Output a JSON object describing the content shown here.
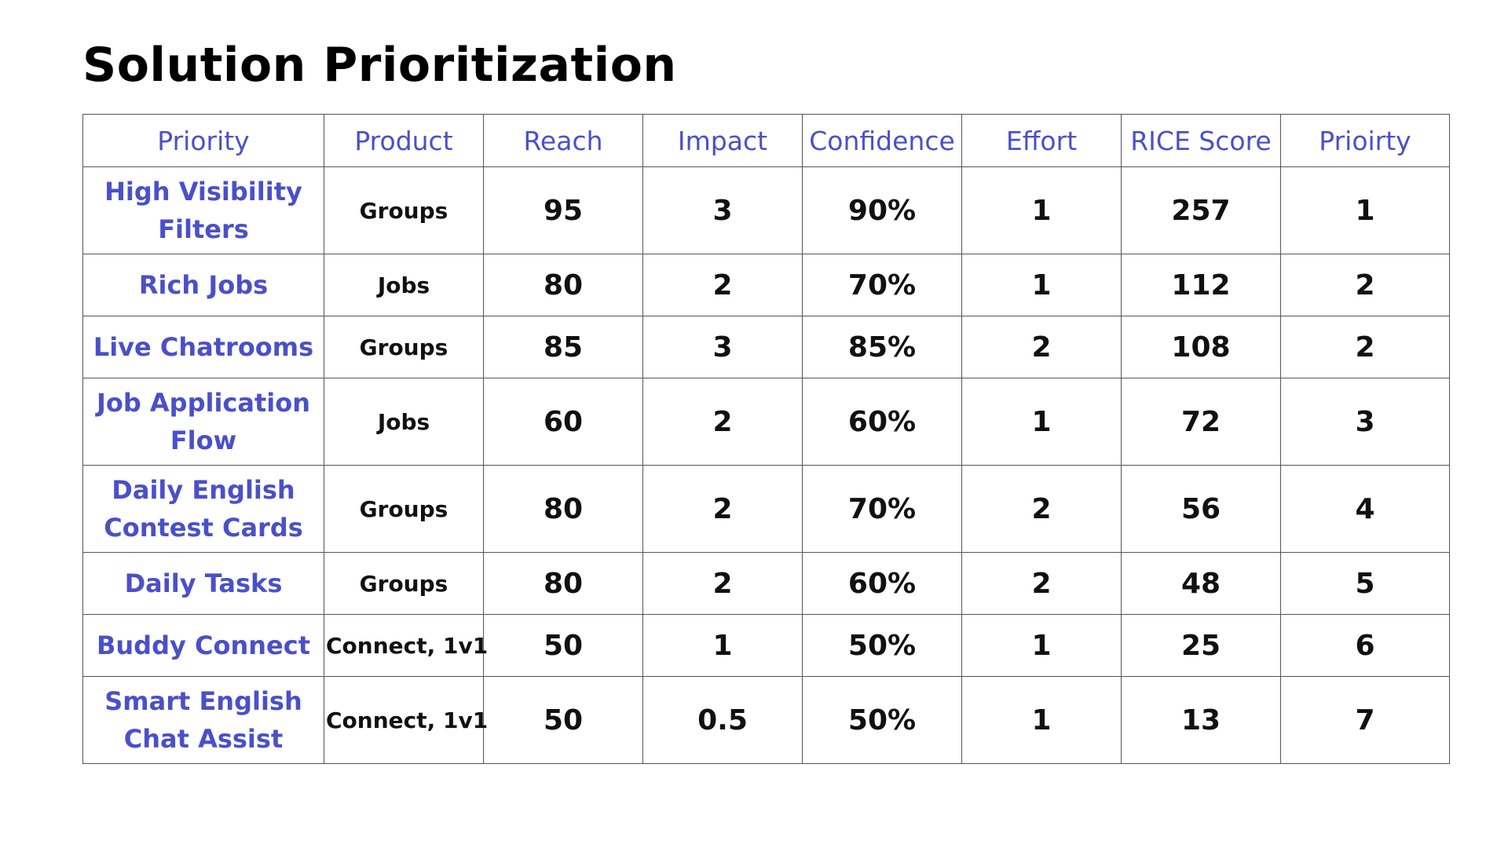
{
  "title": "Solution Prioritization",
  "headers": [
    "Priority",
    "Product",
    "Reach",
    "Impact",
    "Confidence",
    "Effort",
    "RICE Score",
    "Prioirty"
  ],
  "rows": [
    {
      "name": "High Visibility Filters",
      "product": "Groups",
      "reach": "95",
      "impact": "3",
      "confidence": "90%",
      "effort": "1",
      "rice": "257",
      "priority": "1"
    },
    {
      "name": "Rich Jobs",
      "product": "Jobs",
      "reach": "80",
      "impact": "2",
      "confidence": "70%",
      "effort": "1",
      "rice": "112",
      "priority": "2"
    },
    {
      "name": "Live Chatrooms",
      "product": "Groups",
      "reach": "85",
      "impact": "3",
      "confidence": "85%",
      "effort": "2",
      "rice": "108",
      "priority": "2"
    },
    {
      "name": "Job Application Flow",
      "product": "Jobs",
      "reach": "60",
      "impact": "2",
      "confidence": "60%",
      "effort": "1",
      "rice": "72",
      "priority": "3"
    },
    {
      "name": "Daily English Contest Cards",
      "product": "Groups",
      "reach": "80",
      "impact": "2",
      "confidence": "70%",
      "effort": "2",
      "rice": "56",
      "priority": "4"
    },
    {
      "name": "Daily Tasks",
      "product": "Groups",
      "reach": "80",
      "impact": "2",
      "confidence": "60%",
      "effort": "2",
      "rice": "48",
      "priority": "5"
    },
    {
      "name": "Buddy Connect",
      "product": "Connect, 1v1",
      "reach": "50",
      "impact": "1",
      "confidence": "50%",
      "effort": "1",
      "rice": "25",
      "priority": "6"
    },
    {
      "name": "Smart English Chat Assist",
      "product": "Connect, 1v1",
      "reach": "50",
      "impact": "0.5",
      "confidence": "50%",
      "effort": "1",
      "rice": "13",
      "priority": "7"
    }
  ],
  "colors": {
    "header_text": "#4a50c9",
    "name_text": "#4a50c9",
    "body_text": "#111111",
    "border": "#555555"
  }
}
